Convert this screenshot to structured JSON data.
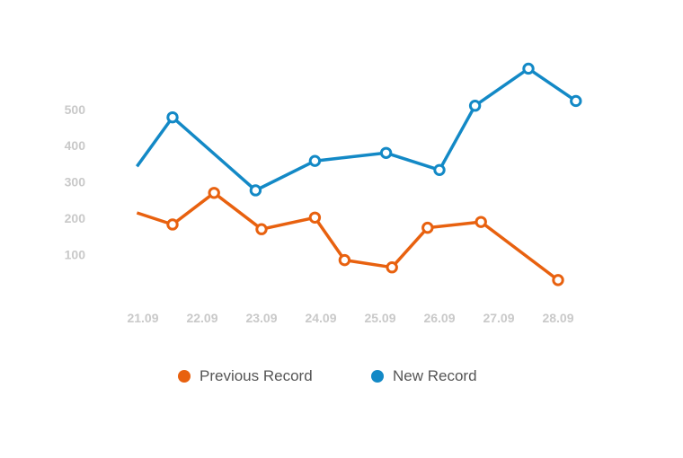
{
  "chart_data": {
    "type": "line",
    "y_ticks": [
      100,
      200,
      300,
      400,
      500
    ],
    "x_ticks": [
      "21.09",
      "22.09",
      "23.09",
      "24.09",
      "25.09",
      "26.09",
      "27.09",
      "28.09"
    ],
    "ylim": [
      0,
      620
    ],
    "x_range": [
      "2023-09-21",
      "2023-09-28"
    ],
    "grid": false,
    "legend_position": "bottom",
    "series": [
      {
        "name": "Previous Record",
        "color": "#e8610f",
        "points": [
          {
            "x": 20.9,
            "y": 215,
            "marker": false
          },
          {
            "x": 21.5,
            "y": 183,
            "marker": true
          },
          {
            "x": 22.2,
            "y": 270,
            "marker": true
          },
          {
            "x": 23.0,
            "y": 170,
            "marker": true
          },
          {
            "x": 23.9,
            "y": 202,
            "marker": true
          },
          {
            "x": 24.4,
            "y": 85,
            "marker": true
          },
          {
            "x": 25.2,
            "y": 65,
            "marker": true
          },
          {
            "x": 25.8,
            "y": 174,
            "marker": true
          },
          {
            "x": 26.7,
            "y": 190,
            "marker": true
          },
          {
            "x": 28.0,
            "y": 30,
            "marker": true
          }
        ]
      },
      {
        "name": "New Record",
        "color": "#1389c6",
        "points": [
          {
            "x": 20.9,
            "y": 343,
            "marker": false
          },
          {
            "x": 21.5,
            "y": 478,
            "marker": true
          },
          {
            "x": 22.9,
            "y": 277,
            "marker": true
          },
          {
            "x": 23.9,
            "y": 358,
            "marker": true
          },
          {
            "x": 25.1,
            "y": 380,
            "marker": true
          },
          {
            "x": 26.0,
            "y": 333,
            "marker": true
          },
          {
            "x": 26.6,
            "y": 510,
            "marker": true
          },
          {
            "x": 27.5,
            "y": 612,
            "marker": true
          },
          {
            "x": 28.3,
            "y": 523,
            "marker": true
          }
        ]
      }
    ]
  }
}
